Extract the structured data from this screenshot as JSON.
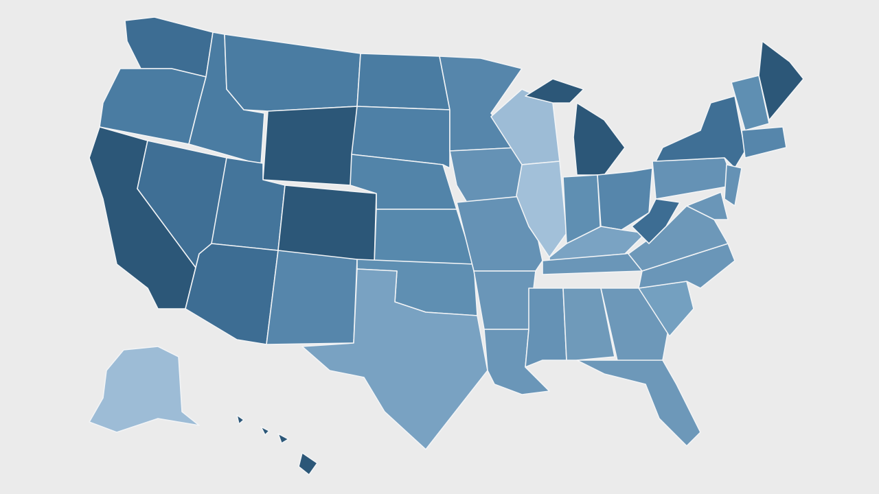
{
  "map": {
    "regions": [
      {
        "color": "#3d6d93"
      },
      {
        "color": "#4a7ca2"
      },
      {
        "color": "#2c5778"
      },
      {
        "color": "#3f6f95"
      },
      {
        "color": "#4a7ca2"
      },
      {
        "color": "#4a7ca2"
      },
      {
        "color": "#2c5778"
      },
      {
        "color": "#44759b"
      },
      {
        "color": "#2c5778"
      },
      {
        "color": "#3d6d93"
      },
      {
        "color": "#5686ab"
      },
      {
        "color": "#4a7ca2"
      },
      {
        "color": "#4e80a6"
      },
      {
        "color": "#5284a9"
      },
      {
        "color": "#5789ad"
      },
      {
        "color": "#5f8fb2"
      },
      {
        "color": "#79a2c2"
      },
      {
        "color": "#5686ab"
      },
      {
        "color": "#6592b5"
      },
      {
        "color": "#6592b5"
      },
      {
        "color": "#6a96b8"
      },
      {
        "color": "#6a96b8"
      },
      {
        "color": "#9dbcd6"
      },
      {
        "color": "#a2c0d9"
      },
      {
        "color": "#2c5778"
      },
      {
        "color": "#2c5778"
      },
      {
        "color": "#5f8fb2"
      },
      {
        "color": "#5686ab"
      },
      {
        "color": "#7aa3c3"
      },
      {
        "color": "#6a96b8"
      },
      {
        "color": "#6592b5"
      },
      {
        "color": "#6f9aba"
      },
      {
        "color": "#6d98b9"
      },
      {
        "color": "#6d98b9"
      },
      {
        "color": "#74a0c0"
      },
      {
        "color": "#6a96b8"
      },
      {
        "color": "#6d98b9"
      },
      {
        "color": "#3d6d93"
      },
      {
        "color": "#6592b5"
      },
      {
        "color": "#3f6f95"
      },
      {
        "color": "#5f8fb2"
      },
      {
        "color": "#2c5778"
      },
      {
        "color": "#5686ab"
      },
      {
        "color": "#6592b5"
      },
      {
        "color": "#6a96b8"
      },
      {
        "color": "#9dbcd6"
      },
      {
        "color": "#2c5778"
      }
    ]
  }
}
